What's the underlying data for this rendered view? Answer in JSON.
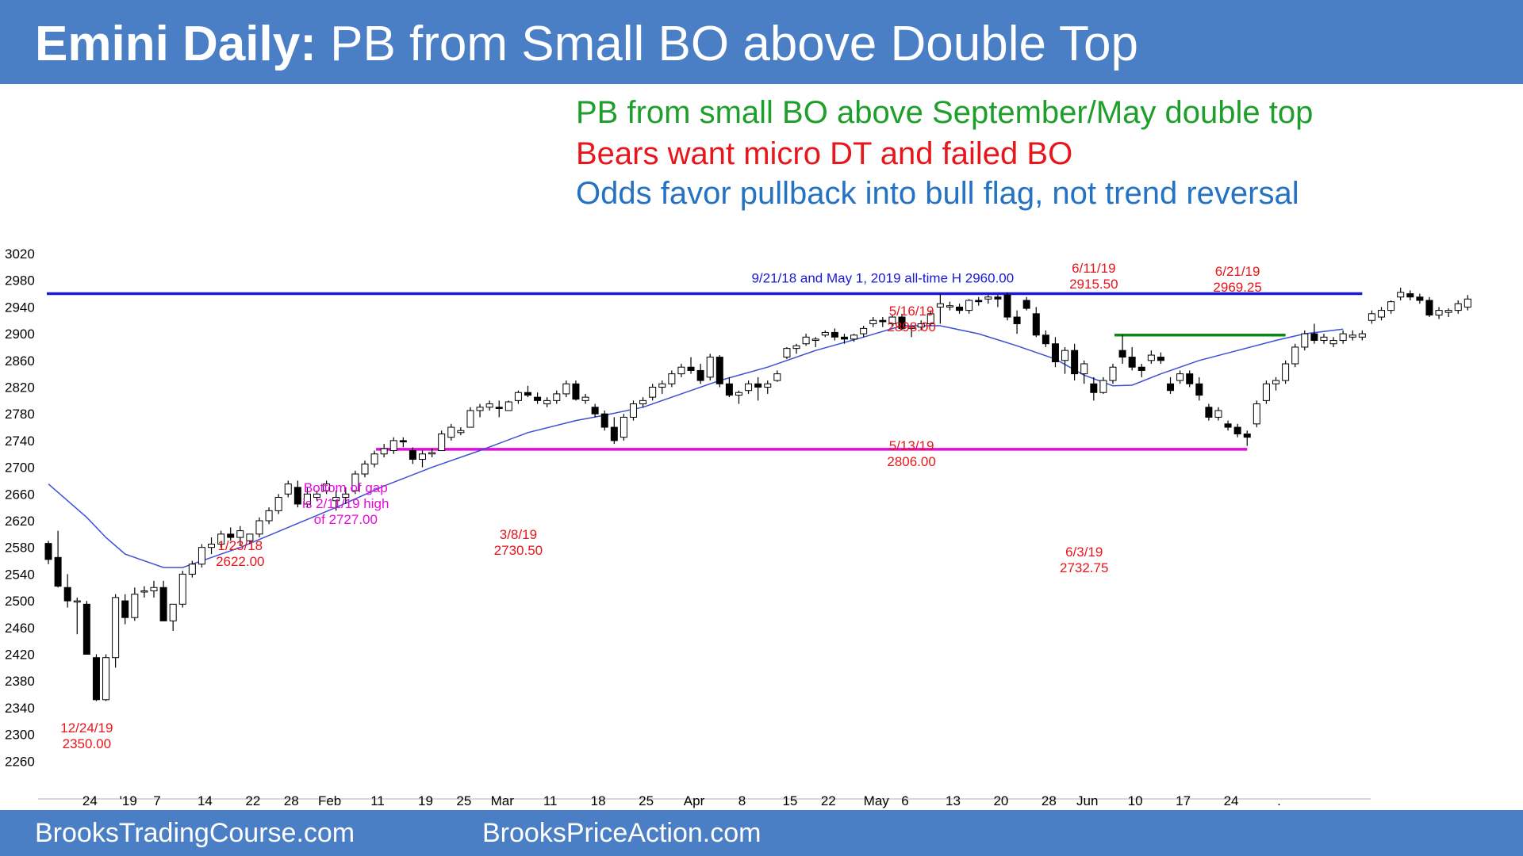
{
  "header": {
    "title_bold": "Emini Daily:",
    "title_rest": " PB from Small BO above Double Top"
  },
  "notes": [
    {
      "text": "PB from small BO above September/May double top",
      "color": "#1e9e2a"
    },
    {
      "text": "Bears want micro DT and failed BO",
      "color": "#e8151b"
    },
    {
      "text": "Odds favor pullback into bull flag, not trend reversal",
      "color": "#2372c3"
    }
  ],
  "footer": {
    "left_text": "BrooksTradingCourse.com",
    "right_text": "BrooksPriceAction.com"
  },
  "colors": {
    "banner": "#4a7fc6",
    "up_candle": "#ffffff",
    "down_candle": "#000000",
    "moving_average": "#3a50d6",
    "resistance_line": "#1a1ad6",
    "support_line": "#e60adc",
    "pullback_line": "#0b8a12",
    "annotation_red": "#e8151b"
  },
  "chart_data": {
    "type": "candlestick",
    "title": "",
    "xlabel": "",
    "ylabel": "",
    "ylim": [
      2240,
      3040
    ],
    "y_ticks": [
      2260,
      2300,
      2340,
      2380,
      2420,
      2460,
      2500,
      2540,
      2580,
      2620,
      2660,
      2700,
      2740,
      2780,
      2820,
      2860,
      2900,
      2940,
      2980,
      3020
    ],
    "x_tick_labels": [
      {
        "bar": 4,
        "label": "24"
      },
      {
        "bar": 8,
        "label": "'19"
      },
      {
        "bar": 11,
        "label": "7"
      },
      {
        "bar": 16,
        "label": "14"
      },
      {
        "bar": 21,
        "label": "22"
      },
      {
        "bar": 25,
        "label": "28"
      },
      {
        "bar": 29,
        "label": "Feb"
      },
      {
        "bar": 34,
        "label": "11"
      },
      {
        "bar": 39,
        "label": "19"
      },
      {
        "bar": 43,
        "label": "25"
      },
      {
        "bar": 47,
        "label": "Mar"
      },
      {
        "bar": 52,
        "label": "11"
      },
      {
        "bar": 57,
        "label": "18"
      },
      {
        "bar": 62,
        "label": "25"
      },
      {
        "bar": 67,
        "label": "Apr"
      },
      {
        "bar": 72,
        "label": "8"
      },
      {
        "bar": 77,
        "label": "15"
      },
      {
        "bar": 81,
        "label": "22"
      },
      {
        "bar": 86,
        "label": "May"
      },
      {
        "bar": 89,
        "label": "6"
      },
      {
        "bar": 94,
        "label": "13"
      },
      {
        "bar": 99,
        "label": "20"
      },
      {
        "bar": 104,
        "label": "28"
      },
      {
        "bar": 108,
        "label": "Jun"
      },
      {
        "bar": 113,
        "label": "10"
      },
      {
        "bar": 118,
        "label": "17"
      },
      {
        "bar": 123,
        "label": "24"
      },
      {
        "bar": 128,
        "label": "."
      }
    ],
    "candles": [
      [
        2586,
        2590,
        2555,
        2562
      ],
      [
        2565,
        2605,
        2520,
        2522
      ],
      [
        2520,
        2540,
        2490,
        2500
      ],
      [
        2500,
        2505,
        2450,
        2500
      ],
      [
        2495,
        2500,
        2420,
        2420
      ],
      [
        2415,
        2420,
        2350,
        2352
      ],
      [
        2352,
        2420,
        2350,
        2415
      ],
      [
        2415,
        2510,
        2400,
        2505
      ],
      [
        2500,
        2510,
        2465,
        2475
      ],
      [
        2475,
        2520,
        2470,
        2510
      ],
      [
        2515,
        2522,
        2505,
        2515
      ],
      [
        2515,
        2530,
        2505,
        2520
      ],
      [
        2520,
        2530,
        2470,
        2470
      ],
      [
        2470,
        2495,
        2455,
        2495
      ],
      [
        2495,
        2545,
        2490,
        2540
      ],
      [
        2540,
        2560,
        2535,
        2555
      ],
      [
        2555,
        2585,
        2550,
        2580
      ],
      [
        2580,
        2595,
        2570,
        2585
      ],
      [
        2585,
        2605,
        2580,
        2600
      ],
      [
        2600,
        2610,
        2590,
        2595
      ],
      [
        2595,
        2612,
        2582,
        2605
      ],
      [
        2590,
        2600,
        2585,
        2600
      ],
      [
        2600,
        2625,
        2595,
        2620
      ],
      [
        2620,
        2640,
        2615,
        2635
      ],
      [
        2635,
        2660,
        2630,
        2655
      ],
      [
        2660,
        2680,
        2655,
        2675
      ],
      [
        2670,
        2680,
        2640,
        2645
      ],
      [
        2645,
        2670,
        2640,
        2660
      ],
      [
        2655,
        2665,
        2650,
        2660
      ],
      [
        2665,
        2680,
        2660,
        2675
      ],
      [
        2650,
        2665,
        2635,
        2655
      ],
      [
        2655,
        2670,
        2645,
        2660
      ],
      [
        2665,
        2695,
        2660,
        2690
      ],
      [
        2690,
        2710,
        2685,
        2705
      ],
      [
        2705,
        2725,
        2700,
        2720
      ],
      [
        2720,
        2735,
        2715,
        2728
      ],
      [
        2725,
        2745,
        2720,
        2740
      ],
      [
        2740,
        2745,
        2730,
        2738
      ],
      [
        2725,
        2730,
        2705,
        2712
      ],
      [
        2712,
        2725,
        2700,
        2720
      ],
      [
        2720,
        2728,
        2715,
        2722
      ],
      [
        2725,
        2755,
        2725,
        2750
      ],
      [
        2745,
        2765,
        2740,
        2760
      ],
      [
        2752,
        2760,
        2748,
        2755
      ],
      [
        2760,
        2790,
        2760,
        2785
      ],
      [
        2785,
        2795,
        2775,
        2790
      ],
      [
        2790,
        2800,
        2785,
        2795
      ],
      [
        2790,
        2800,
        2775,
        2788
      ],
      [
        2785,
        2800,
        2785,
        2798
      ],
      [
        2800,
        2815,
        2795,
        2812
      ],
      [
        2812,
        2822,
        2805,
        2808
      ],
      [
        2805,
        2812,
        2795,
        2800
      ],
      [
        2795,
        2805,
        2790,
        2800
      ],
      [
        2800,
        2815,
        2795,
        2810
      ],
      [
        2810,
        2830,
        2805,
        2825
      ],
      [
        2825,
        2830,
        2800,
        2802
      ],
      [
        2800,
        2810,
        2795,
        2805
      ],
      [
        2790,
        2795,
        2775,
        2780
      ],
      [
        2780,
        2785,
        2755,
        2760
      ],
      [
        2760,
        2775,
        2735,
        2740
      ],
      [
        2745,
        2780,
        2740,
        2775
      ],
      [
        2775,
        2800,
        2770,
        2795
      ],
      [
        2795,
        2805,
        2790,
        2800
      ],
      [
        2805,
        2825,
        2800,
        2820
      ],
      [
        2820,
        2830,
        2810,
        2825
      ],
      [
        2825,
        2845,
        2820,
        2840
      ],
      [
        2840,
        2855,
        2835,
        2850
      ],
      [
        2850,
        2865,
        2840,
        2845
      ],
      [
        2845,
        2855,
        2825,
        2830
      ],
      [
        2835,
        2870,
        2830,
        2865
      ],
      [
        2865,
        2868,
        2820,
        2825
      ],
      [
        2825,
        2835,
        2805,
        2808
      ],
      [
        2808,
        2815,
        2795,
        2812
      ],
      [
        2815,
        2830,
        2810,
        2825
      ],
      [
        2825,
        2835,
        2800,
        2820
      ],
      [
        2820,
        2830,
        2810,
        2825
      ],
      [
        2830,
        2845,
        2828,
        2840
      ],
      [
        2865,
        2880,
        2862,
        2878
      ],
      [
        2878,
        2885,
        2870,
        2882
      ],
      [
        2885,
        2900,
        2882,
        2895
      ],
      [
        2890,
        2895,
        2880,
        2892
      ],
      [
        2898,
        2905,
        2895,
        2902
      ],
      [
        2902,
        2908,
        2890,
        2895
      ],
      [
        2895,
        2900,
        2885,
        2892
      ],
      [
        2892,
        2900,
        2888,
        2898
      ],
      [
        2900,
        2912,
        2895,
        2908
      ],
      [
        2915,
        2925,
        2910,
        2920
      ],
      [
        2920,
        2925,
        2910,
        2918
      ],
      [
        2915,
        2928,
        2910,
        2925
      ],
      [
        2925,
        2930,
        2905,
        2908
      ],
      [
        2908,
        2912,
        2895,
        2910
      ],
      [
        2910,
        2920,
        2905,
        2915
      ],
      [
        2915,
        2935,
        2912,
        2930
      ],
      [
        2940,
        2960,
        2915,
        2945
      ],
      [
        2940,
        2948,
        2935,
        2942
      ],
      [
        2940,
        2945,
        2930,
        2935
      ],
      [
        2935,
        2952,
        2930,
        2950
      ],
      [
        2950,
        2955,
        2942,
        2948
      ],
      [
        2952,
        2958,
        2945,
        2955
      ],
      [
        2955,
        2958,
        2940,
        2952
      ],
      [
        2958,
        2962,
        2920,
        2925
      ],
      [
        2925,
        2935,
        2900,
        2915
      ],
      [
        2950,
        2955,
        2935,
        2938
      ],
      [
        2930,
        2940,
        2895,
        2898
      ],
      [
        2898,
        2905,
        2880,
        2885
      ],
      [
        2885,
        2895,
        2850,
        2858
      ],
      [
        2860,
        2880,
        2840,
        2875
      ],
      [
        2875,
        2885,
        2830,
        2840
      ],
      [
        2840,
        2860,
        2825,
        2855
      ],
      [
        2825,
        2835,
        2800,
        2812
      ],
      [
        2812,
        2835,
        2810,
        2830
      ],
      [
        2830,
        2855,
        2825,
        2850
      ],
      [
        2875,
        2898,
        2855,
        2865
      ],
      [
        2865,
        2880,
        2845,
        2850
      ],
      [
        2850,
        2855,
        2835,
        2845
      ],
      [
        2860,
        2875,
        2855,
        2868
      ],
      [
        2865,
        2872,
        2855,
        2860
      ],
      [
        2825,
        2835,
        2810,
        2815
      ],
      [
        2830,
        2845,
        2825,
        2840
      ],
      [
        2840,
        2845,
        2820,
        2825
      ],
      [
        2825,
        2835,
        2800,
        2808
      ],
      [
        2790,
        2795,
        2770,
        2775
      ],
      [
        2775,
        2790,
        2770,
        2785
      ],
      [
        2765,
        2770,
        2755,
        2760
      ],
      [
        2760,
        2765,
        2745,
        2750
      ],
      [
        2750,
        2755,
        2732,
        2745
      ],
      [
        2765,
        2800,
        2760,
        2795
      ],
      [
        2800,
        2830,
        2795,
        2825
      ],
      [
        2825,
        2835,
        2815,
        2830
      ],
      [
        2830,
        2860,
        2825,
        2855
      ],
      [
        2855,
        2885,
        2850,
        2880
      ],
      [
        2880,
        2905,
        2875,
        2900
      ],
      [
        2900,
        2915,
        2885,
        2890
      ],
      [
        2890,
        2900,
        2885,
        2895
      ],
      [
        2885,
        2895,
        2880,
        2890
      ],
      [
        2890,
        2905,
        2885,
        2900
      ],
      [
        2895,
        2905,
        2890,
        2898
      ],
      [
        2895,
        2905,
        2890,
        2900
      ],
      [
        2920,
        2935,
        2915,
        2930
      ],
      [
        2925,
        2940,
        2920,
        2935
      ],
      [
        2935,
        2950,
        2930,
        2948
      ],
      [
        2955,
        2969,
        2950,
        2962
      ],
      [
        2960,
        2965,
        2950,
        2955
      ],
      [
        2955,
        2960,
        2945,
        2950
      ],
      [
        2950,
        2955,
        2925,
        2928
      ],
      [
        2928,
        2940,
        2922,
        2935
      ],
      [
        2932,
        2938,
        2925,
        2935
      ],
      [
        2935,
        2950,
        2930,
        2945
      ],
      [
        2940,
        2958,
        2935,
        2952
      ]
    ],
    "moving_average": [
      [
        0,
        2675
      ],
      [
        2,
        2650
      ],
      [
        4,
        2625
      ],
      [
        6,
        2595
      ],
      [
        8,
        2570
      ],
      [
        10,
        2560
      ],
      [
        12,
        2550
      ],
      [
        14,
        2550
      ],
      [
        16,
        2560
      ],
      [
        20,
        2580
      ],
      [
        25,
        2610
      ],
      [
        30,
        2640
      ],
      [
        35,
        2672
      ],
      [
        40,
        2700
      ],
      [
        45,
        2725
      ],
      [
        50,
        2752
      ],
      [
        55,
        2770
      ],
      [
        58,
        2778
      ],
      [
        62,
        2790
      ],
      [
        66,
        2810
      ],
      [
        70,
        2830
      ],
      [
        75,
        2850
      ],
      [
        80,
        2875
      ],
      [
        85,
        2895
      ],
      [
        89,
        2912
      ],
      [
        93,
        2912
      ],
      [
        97,
        2900
      ],
      [
        101,
        2882
      ],
      [
        105,
        2862
      ],
      [
        108,
        2838
      ],
      [
        111,
        2822
      ],
      [
        113,
        2823
      ],
      [
        116,
        2840
      ],
      [
        120,
        2860
      ],
      [
        124,
        2875
      ],
      [
        128,
        2890
      ],
      [
        131,
        2900
      ],
      [
        135,
        2907
      ]
    ],
    "horizontal_lines": [
      {
        "value": 2960,
        "from_bar": 0,
        "to_bar": 137,
        "color": "#1a1ad6",
        "label": "9/21/18 and May 1, 2019 all-time H 2960.00"
      },
      {
        "value": 2727,
        "from_bar": 34,
        "to_bar": 125,
        "color": "#e60adc"
      },
      {
        "value": 2898,
        "from_bar": 111,
        "to_bar": 129,
        "color": "#0b8a12"
      }
    ],
    "annotations": [
      {
        "lines": [
          "12/24/19",
          "2350.00"
        ],
        "color": "#e8151b"
      },
      {
        "lines": [
          "1/23/18",
          "2622.00"
        ],
        "color": "#e8151b"
      },
      {
        "lines": [
          "Bottom of gap",
          "is 2/11/19 high",
          "of 2727.00"
        ],
        "color": "#e60adc"
      },
      {
        "lines": [
          "3/8/19",
          "2730.50"
        ],
        "color": "#e8151b"
      },
      {
        "lines": [
          "5/16/19",
          "2898.00"
        ],
        "color": "#e8151b"
      },
      {
        "lines": [
          "5/13/19",
          "2806.00"
        ],
        "color": "#e8151b"
      },
      {
        "lines": [
          "6/11/19",
          "2915.50"
        ],
        "color": "#e8151b"
      },
      {
        "lines": [
          "6/21/19",
          "2969.25"
        ],
        "color": "#e8151b"
      },
      {
        "lines": [
          "6/3/19",
          "2732.75"
        ],
        "color": "#e8151b"
      }
    ]
  }
}
